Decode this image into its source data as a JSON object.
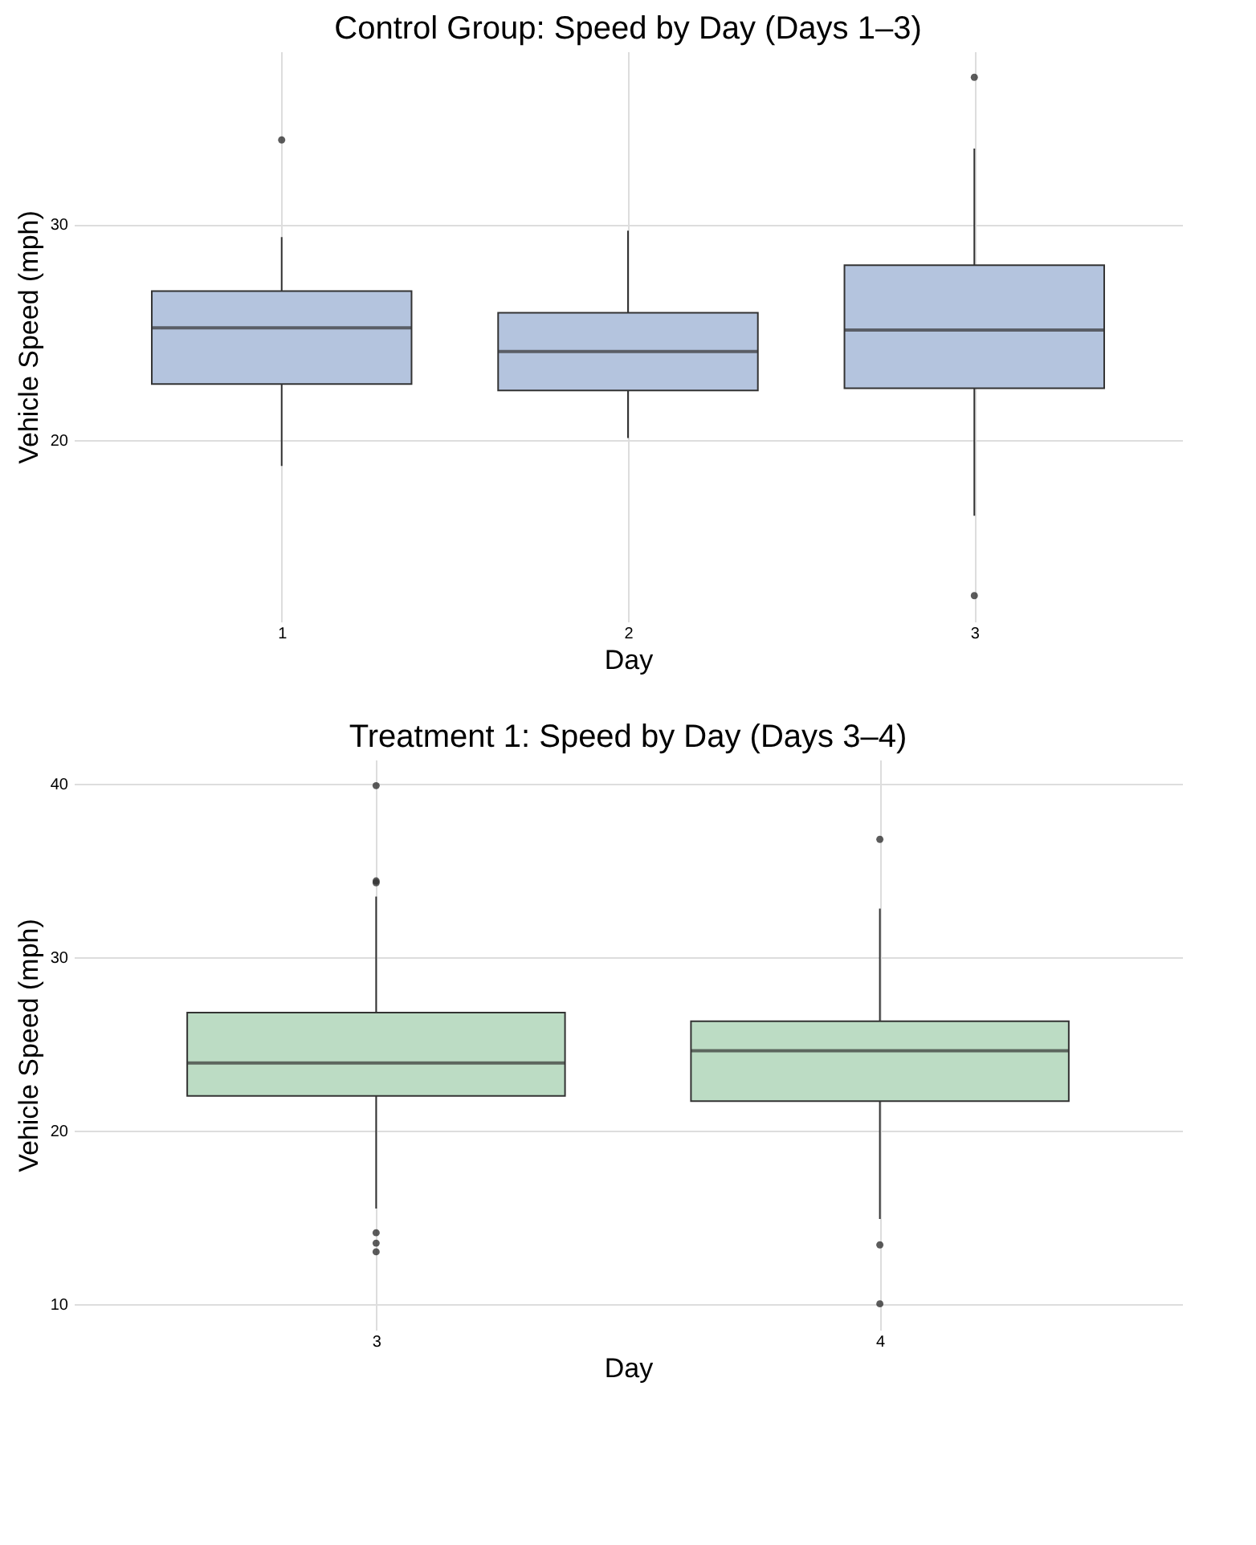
{
  "chart_data": [
    {
      "type": "box",
      "title": "Control Group: Speed by Day (Days 1–3)",
      "xlabel": "Day",
      "ylabel": "Vehicle Speed (mph)",
      "categories": [
        "1",
        "2",
        "3"
      ],
      "color": "#b4c4de",
      "grid": true,
      "ylim": [
        11.6,
        38.0
      ],
      "yticks": [
        20,
        30
      ],
      "boxes": [
        {
          "low": 18.8,
          "q1": 22.6,
          "median": 25.2,
          "q3": 26.9,
          "high": 29.4,
          "outliers": [
            33.9
          ]
        },
        {
          "low": 20.1,
          "q1": 22.3,
          "median": 24.1,
          "q3": 25.9,
          "high": 29.7
        },
        {
          "low": 16.5,
          "q1": 22.4,
          "median": 25.1,
          "q3": 28.1,
          "high": 33.5,
          "outliers": [
            36.8,
            12.8
          ]
        }
      ]
    },
    {
      "type": "box",
      "title": "Treatment 1: Speed by Day (Days 3–4)",
      "xlabel": "Day",
      "ylabel": "Vehicle Speed (mph)",
      "categories": [
        "3",
        "4"
      ],
      "color": "#bcdcc4",
      "grid": true,
      "ylim": [
        8.5,
        41.4
      ],
      "yticks": [
        10,
        20,
        30,
        40
      ],
      "boxes": [
        {
          "low": 15.5,
          "q1": 22.0,
          "median": 23.9,
          "q3": 26.8,
          "high": 33.5,
          "outliers": [
            39.9,
            34.4,
            34.3,
            14.1,
            13.5,
            13.0
          ]
        },
        {
          "low": 14.9,
          "q1": 21.7,
          "median": 24.6,
          "q3": 26.3,
          "high": 32.8,
          "outliers": [
            36.8,
            13.4,
            10.0
          ]
        }
      ]
    }
  ]
}
